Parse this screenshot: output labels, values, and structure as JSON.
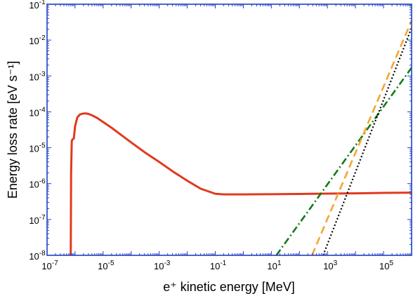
{
  "chart_data": {
    "type": "line",
    "xlabel": "e⁺ kinetic energy [MeV]",
    "ylabel": "Energy loss rate [eV s⁻¹]",
    "xscale": "log",
    "yscale": "log",
    "xlim": [
      1e-07,
      1000000.0
    ],
    "ylim": [
      1e-08,
      0.1
    ],
    "grid": false,
    "x_ticks": [
      {
        "value": 1e-07,
        "base": "10",
        "exp": "-7"
      },
      {
        "value": 1e-05,
        "base": "10",
        "exp": "-5"
      },
      {
        "value": 0.001,
        "base": "10",
        "exp": "-3"
      },
      {
        "value": 0.1,
        "base": "10",
        "exp": "-1"
      },
      {
        "value": 10.0,
        "base": "10",
        "exp": "1"
      },
      {
        "value": 1000.0,
        "base": "10",
        "exp": "3"
      },
      {
        "value": 100000.0,
        "base": "10",
        "exp": "5"
      }
    ],
    "y_ticks": [
      {
        "value": 1e-08,
        "base": "10",
        "exp": "-8"
      },
      {
        "value": 1e-07,
        "base": "10",
        "exp": "-7"
      },
      {
        "value": 1e-06,
        "base": "10",
        "exp": "-6"
      },
      {
        "value": 1e-05,
        "base": "10",
        "exp": "-5"
      },
      {
        "value": 0.0001,
        "base": "10",
        "exp": "-4"
      },
      {
        "value": 0.001,
        "base": "10",
        "exp": "-3"
      },
      {
        "value": 0.01,
        "base": "10",
        "exp": "-2"
      },
      {
        "value": 0.1,
        "base": "10",
        "exp": "-1"
      }
    ],
    "series": [
      {
        "style": "solid",
        "color": "#e03a1e",
        "x": [
          7e-07,
          7.2e-07,
          7.6e-07,
          8e-07,
          9e-07,
          1e-06,
          1.2e-06,
          1.5e-06,
          2e-06,
          2.5e-06,
          3e-06,
          4e-06,
          6e-06,
          1e-05,
          2e-05,
          5e-05,
          0.0001,
          0.0003,
          0.001,
          0.003,
          0.01,
          0.03,
          0.1,
          0.2,
          1,
          10,
          100,
          1000,
          10000,
          100000,
          1000000
        ],
        "y": [
          1e-08,
          2e-06,
          1.5e-05,
          1.7e-05,
          1.8e-05,
          4e-05,
          7e-05,
          8.5e-05,
          9e-05,
          9e-05,
          8.7e-05,
          8e-05,
          6.8e-05,
          5.2e-05,
          3.6e-05,
          2.1e-05,
          1.4e-05,
          7.5e-06,
          4e-06,
          2.2e-06,
          1.2e-06,
          7.2e-07,
          5.2e-07,
          5e-07,
          5e-07,
          5.05e-07,
          5.15e-07,
          5.25e-07,
          5.35e-07,
          5.5e-07,
          5.6e-07
        ]
      },
      {
        "style": "dashdot",
        "color": "#137a17",
        "x": [
          15,
          1000000
        ],
        "y": [
          1e-08,
          0.0017
        ]
      },
      {
        "style": "dashed",
        "color": "#f5a533",
        "x": [
          280,
          1000000
        ],
        "y": [
          1e-08,
          0.035
        ]
      },
      {
        "style": "dotted",
        "color": "#000000",
        "x": [
          700,
          1000000
        ],
        "y": [
          1e-08,
          0.022
        ]
      }
    ]
  }
}
